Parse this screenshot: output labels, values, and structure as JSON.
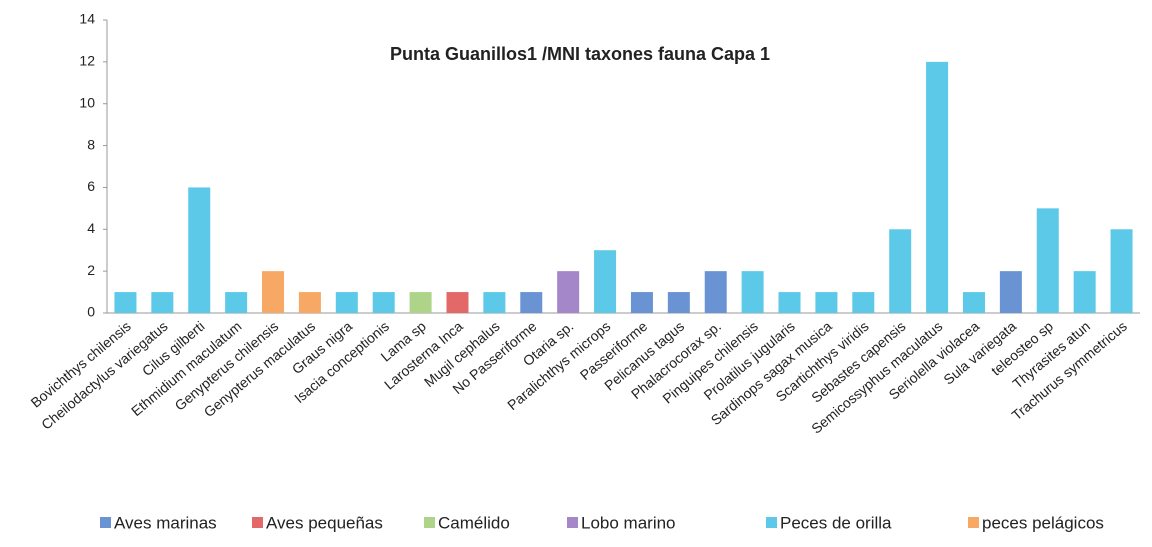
{
  "chart_data": {
    "type": "bar",
    "title": "Punta Guanillos1 /MNI taxones fauna Capa 1",
    "categories": [
      "Bovichthys chilensis",
      "Cheilodactylus variegatus",
      "Cilus gilberti",
      "Ethmidium maculatum",
      "Genypterus chilensis",
      "Genypterus maculatus",
      "Graus nigra",
      "Isacia conceptionis",
      "Lama sp",
      "Larosterna Inca",
      "Mugil cephalus",
      "No Passeriforme",
      "Otaria sp.",
      "Paralichthys microps",
      "Passeriforme",
      "Pelicanus tagus",
      "Phalacrocorax sp.",
      "Pinguipes chilensis",
      "Prolatilus jugularis",
      "Sardinops sagax musica",
      "Scartichthys viridis",
      "Sebastes capensis",
      "Semicossyphus maculatus",
      "Seriolella violacea",
      "Sula variegata",
      "teleosteo sp",
      "Thyrasites atun",
      "Trachurus symmetricus"
    ],
    "series": [
      {
        "name": "Aves marinas",
        "color": "#6a93d4",
        "values": [
          null,
          null,
          null,
          null,
          null,
          null,
          null,
          null,
          null,
          null,
          null,
          1,
          null,
          null,
          1,
          1,
          2,
          null,
          null,
          null,
          null,
          null,
          null,
          null,
          2,
          null,
          null,
          null
        ]
      },
      {
        "name": "Aves pequeñas",
        "color": "#e36868",
        "values": [
          null,
          null,
          null,
          null,
          null,
          null,
          null,
          null,
          null,
          1,
          null,
          null,
          null,
          null,
          null,
          null,
          null,
          null,
          null,
          null,
          null,
          null,
          null,
          null,
          null,
          null,
          null,
          null
        ]
      },
      {
        "name": "Camélido",
        "color": "#aed48a",
        "values": [
          null,
          null,
          null,
          null,
          null,
          null,
          null,
          null,
          1,
          null,
          null,
          null,
          null,
          null,
          null,
          null,
          null,
          null,
          null,
          null,
          null,
          null,
          null,
          null,
          null,
          null,
          null,
          null
        ]
      },
      {
        "name": "Lobo marino",
        "color": "#a487c8",
        "values": [
          null,
          null,
          null,
          null,
          null,
          null,
          null,
          null,
          null,
          null,
          null,
          null,
          2,
          null,
          null,
          null,
          null,
          null,
          null,
          null,
          null,
          null,
          null,
          null,
          null,
          null,
          null,
          null
        ]
      },
      {
        "name": "Peces de orilla",
        "color": "#5cc9e8",
        "values": [
          1,
          1,
          6,
          1,
          null,
          null,
          1,
          1,
          null,
          null,
          1,
          null,
          null,
          3,
          null,
          null,
          null,
          2,
          1,
          1,
          1,
          4,
          12,
          1,
          null,
          5,
          2,
          4
        ]
      },
      {
        "name": "peces pelágicos",
        "color": "#f7a864",
        "values": [
          null,
          null,
          null,
          null,
          2,
          1,
          null,
          null,
          null,
          null,
          null,
          null,
          null,
          null,
          null,
          null,
          null,
          null,
          null,
          null,
          null,
          null,
          null,
          null,
          null,
          null,
          null,
          null
        ]
      }
    ],
    "ylim": [
      0,
      14
    ],
    "yticks": [
      0,
      2,
      4,
      6,
      8,
      10,
      12,
      14
    ]
  }
}
